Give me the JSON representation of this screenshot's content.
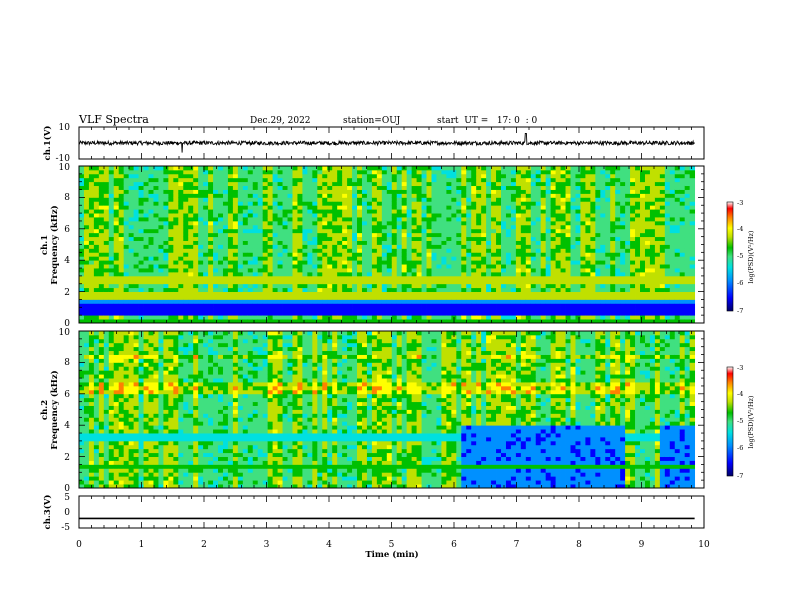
{
  "header": {
    "title": "VLF Spectra",
    "date": "Dec.29, 2022",
    "station": "station=OUJ",
    "start": "start  UT =   17: 0  : 0"
  },
  "colors": {
    "background": "#ffffff",
    "axes": "#000000",
    "colormap": [
      "#000066",
      "#0000ff",
      "#0090ff",
      "#00e0e0",
      "#40e080",
      "#00c000",
      "#c0e000",
      "#ffff00",
      "#ff8000",
      "#ff0000",
      "#ffffff"
    ]
  },
  "chart_data": [
    {
      "type": "line",
      "name": "ch1_waveform",
      "ylabel": "ch.1(V)",
      "ylim": [
        -10,
        10
      ],
      "yticklabels": [
        "10",
        "-10"
      ],
      "xlim": [
        0,
        10
      ],
      "description_values": {
        "baseline_V": 0,
        "amplitude_V": 2
      }
    },
    {
      "type": "heatmap",
      "name": "ch1_spectrogram",
      "ylabel_line1": "ch.1",
      "ylabel_line2": "Frequency (kHz)",
      "ylim": [
        0,
        10
      ],
      "yticklabels": [
        "0",
        "2",
        "4",
        "6",
        "8",
        "10"
      ],
      "xlim": [
        0,
        10
      ],
      "xmax_data": 9.85,
      "colorbar": {
        "label": "log(PSD)(V²/Hz)",
        "min": -7,
        "max": -3,
        "ticklabels": [
          "-3",
          "-4",
          "-5",
          "-6",
          "-7"
        ]
      },
      "features": {
        "low_band_kHz": [
          0.3,
          1.3
        ],
        "quiet_after_min": null
      }
    },
    {
      "type": "heatmap",
      "name": "ch2_spectrogram",
      "ylabel_line1": "ch.2",
      "ylabel_line2": "Frequency (kHz)",
      "ylim": [
        0,
        10
      ],
      "yticklabels": [
        "0",
        "2",
        "4",
        "6",
        "8",
        "10"
      ],
      "xlim": [
        0,
        10
      ],
      "xmax_data": 9.85,
      "colorbar": {
        "label": "log(PSD)(V²/Hz)",
        "min": -7,
        "max": -3,
        "ticklabels": [
          "-3",
          "-4",
          "-5",
          "-6",
          "-7"
        ]
      },
      "features": {
        "quiet_segments_min": [
          [
            6.1,
            8.7
          ],
          [
            9.3,
            9.85
          ]
        ],
        "quiet_below_kHz": 4
      }
    },
    {
      "type": "line",
      "name": "ch3_waveform",
      "ylabel": "ch.3(V)",
      "ylim": [
        -5,
        5
      ],
      "yticklabels": [
        "5",
        "0",
        "-5"
      ],
      "xlim": [
        0,
        10
      ],
      "xlabel": "Time (min)",
      "xticklabels": [
        "0",
        "1",
        "2",
        "3",
        "4",
        "5",
        "6",
        "7",
        "8",
        "9",
        "10"
      ],
      "values_constant_V": -2
    }
  ]
}
